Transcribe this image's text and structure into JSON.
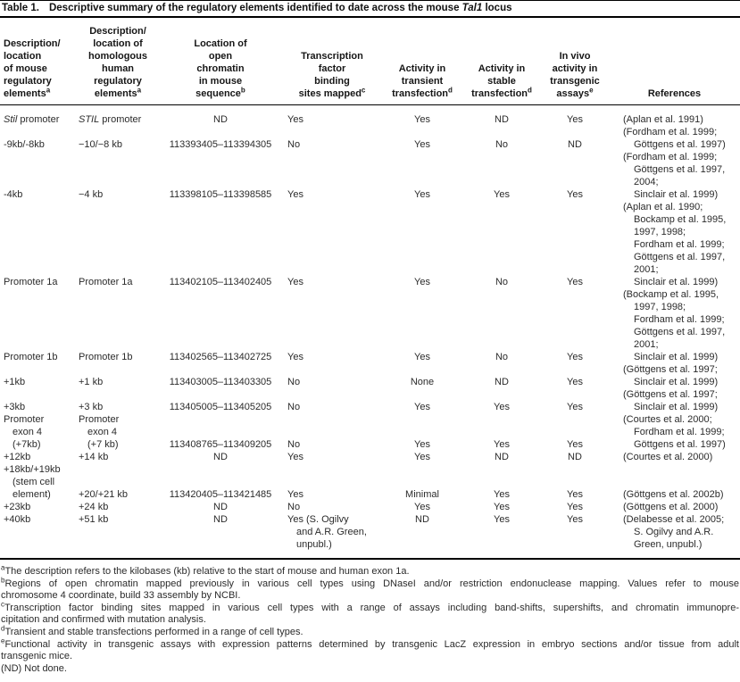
{
  "colors": {
    "background": "#ffffff",
    "text": "#2b2b2b",
    "rule": "#000000"
  },
  "title": {
    "label": "Table 1.",
    "text": "Descriptive summary of the regulatory elements identified to date across the mouse *Tal1* locus"
  },
  "columns": [
    {
      "id": "mouse",
      "align": "left",
      "lines": [
        "Description/",
        "location",
        "of mouse",
        "regulatory",
        "elements^a"
      ]
    },
    {
      "id": "human",
      "align": "center",
      "lines": [
        "Description/",
        "location of",
        "homologous",
        "human",
        "regulatory",
        "elements^a"
      ]
    },
    {
      "id": "location",
      "align": "center",
      "lines": [
        "Location of",
        "open",
        "chromatin",
        "in mouse",
        "sequence^b"
      ]
    },
    {
      "id": "tf-binding",
      "align": "center",
      "lines": [
        "Transcription",
        "factor",
        "binding",
        "sites mapped^c"
      ]
    },
    {
      "id": "transient",
      "align": "center",
      "lines": [
        "Activity in",
        "transient",
        "transfection^d"
      ]
    },
    {
      "id": "stable",
      "align": "center",
      "lines": [
        "Activity in",
        "stable",
        "transfection^d"
      ]
    },
    {
      "id": "invivo",
      "align": "center",
      "lines": [
        "In vivo",
        "activity in",
        "transgenic",
        "assays^e"
      ]
    },
    {
      "id": "references",
      "align": "center",
      "lines": [
        "References"
      ]
    }
  ],
  "rows": [
    {
      "mouse": [
        "*Stil* promoter"
      ],
      "human": [
        "*STIL* promoter"
      ],
      "location": "ND",
      "tf": [
        "Yes"
      ],
      "transient": "Yes",
      "stable": "ND",
      "invivo": "Yes",
      "refs": [
        "(Aplan et al. 1991)"
      ]
    },
    {
      "mouse": [
        "-9kb/-8kb"
      ],
      "human": [
        "−10/−8 kb"
      ],
      "location": "113393405–113394305",
      "tf": [
        "No"
      ],
      "transient": "Yes",
      "stable": "No",
      "invivo": "ND",
      "refs": [
        "(Fordham et al. 1999;",
        "Göttgens et al. 1997)"
      ]
    },
    {
      "mouse": [
        "-4kb"
      ],
      "human": [
        "−4 kb"
      ],
      "location": "113398105–113398585",
      "tf": [
        "Yes"
      ],
      "transient": "Yes",
      "stable": "Yes",
      "invivo": "Yes",
      "refs": [
        "(Fordham et al. 1999;",
        "Göttgens et al. 1997,",
        "2004;",
        "Sinclair et al. 1999)"
      ]
    },
    {
      "mouse": [
        "Promoter 1a"
      ],
      "human": [
        "Promoter 1a"
      ],
      "location": "113402105–113402405",
      "tf": [
        "Yes"
      ],
      "transient": "Yes",
      "stable": "No",
      "invivo": "Yes",
      "refs": [
        "(Aplan et al. 1990;",
        "Bockamp et al. 1995,",
        "1997, 1998;",
        "Fordham et al. 1999;",
        "Göttgens et al. 1997,",
        "2001;",
        "Sinclair et al. 1999)"
      ]
    },
    {
      "mouse": [
        "Promoter 1b"
      ],
      "human": [
        "Promoter 1b"
      ],
      "location": "113402565–113402725",
      "tf": [
        "Yes"
      ],
      "transient": "Yes",
      "stable": "No",
      "invivo": "Yes",
      "refs": [
        "(Bockamp et al. 1995,",
        "1997, 1998;",
        "Fordham et al. 1999;",
        "Göttgens et al. 1997,",
        "2001;",
        "Sinclair et al. 1999)"
      ]
    },
    {
      "mouse": [
        "+1kb"
      ],
      "human": [
        "+1 kb"
      ],
      "location": "113403005–113403305",
      "tf": [
        "No"
      ],
      "transient": "None",
      "stable": "ND",
      "invivo": "Yes",
      "refs": [
        "(Göttgens et al. 1997;",
        "Sinclair et al. 1999)"
      ]
    },
    {
      "mouse": [
        "+3kb"
      ],
      "human": [
        "+3 kb"
      ],
      "location": "113405005–113405205",
      "tf": [
        "No"
      ],
      "transient": "Yes",
      "stable": "Yes",
      "invivo": "Yes",
      "refs": [
        "(Göttgens et al. 1997;",
        "Sinclair et al. 1999)"
      ]
    },
    {
      "mouse": [
        "Promoter",
        "exon 4",
        "(+7kb)"
      ],
      "human": [
        "Promoter",
        "exon 4",
        "(+7 kb)"
      ],
      "location": "113408765–113409205",
      "tf": [
        "No"
      ],
      "transient": "Yes",
      "stable": "Yes",
      "invivo": "Yes",
      "refs": [
        "(Courtes et al. 2000;",
        "Fordham et al. 1999;",
        "Göttgens et al. 1997)"
      ]
    },
    {
      "mouse": [
        "+12kb"
      ],
      "human": [
        "+14 kb"
      ],
      "location": "ND",
      "tf": [
        "Yes"
      ],
      "transient": "Yes",
      "stable": "ND",
      "invivo": "ND",
      "refs": [
        "(Courtes et al. 2000)"
      ]
    },
    {
      "mouse": [
        "+18kb/+19kb",
        "(stem cell",
        "element)"
      ],
      "human": [
        "+20/+21 kb"
      ],
      "location": "113420405–113421485",
      "tf": [
        "Yes"
      ],
      "transient": "Minimal",
      "stable": "Yes",
      "invivo": "Yes",
      "refs": [
        "(Göttgens et al. 2002b)"
      ]
    },
    {
      "mouse": [
        "+23kb"
      ],
      "human": [
        "+24 kb"
      ],
      "location": "ND",
      "tf": [
        "No"
      ],
      "transient": "Yes",
      "stable": "Yes",
      "invivo": "Yes",
      "refs": [
        "(Göttgens et al. 2000)"
      ]
    },
    {
      "mouse": [
        "+40kb"
      ],
      "human": [
        "+51 kb"
      ],
      "location": "ND",
      "tf": [
        "Yes (S. Ogilvy",
        "and A.R. Green,",
        "unpubl.)"
      ],
      "transient": "ND",
      "stable": "Yes",
      "invivo": "Yes",
      "refs": [
        "(Delabesse et al. 2005;",
        "S. Ogilvy and A.R.",
        "Green, unpubl.)"
      ],
      "valign": "top"
    }
  ],
  "footnotes": [
    {
      "sup": "a",
      "lines": [
        "The description refers to the kilobases (kb) relative to the start of mouse and human exon 1a."
      ]
    },
    {
      "sup": "b",
      "lines": [
        "Regions of open chromatin mapped previously in various cell types using DNaseI and/or restriction endonuclease mapping. Values refer to mouse",
        "chromosome 4 coordinate, build 33 assembly by NCBI."
      ]
    },
    {
      "sup": "c",
      "lines": [
        "Transcription factor binding sites mapped in various cell types with a range of assays including band-shifts, supershifts, and chromatin immunopre-",
        "cipitation and confirmed with mutation analysis."
      ]
    },
    {
      "sup": "d",
      "lines": [
        "Transient and stable transfections performed in a range of cell types."
      ]
    },
    {
      "sup": "e",
      "lines": [
        "Functional activity in transgenic assays with expression patterns determined by transgenic LacZ expression in embryo sections and/or tissue from adult",
        "transgenic mice."
      ]
    },
    {
      "sup": "",
      "lines": [
        "(ND) Not done."
      ]
    }
  ]
}
